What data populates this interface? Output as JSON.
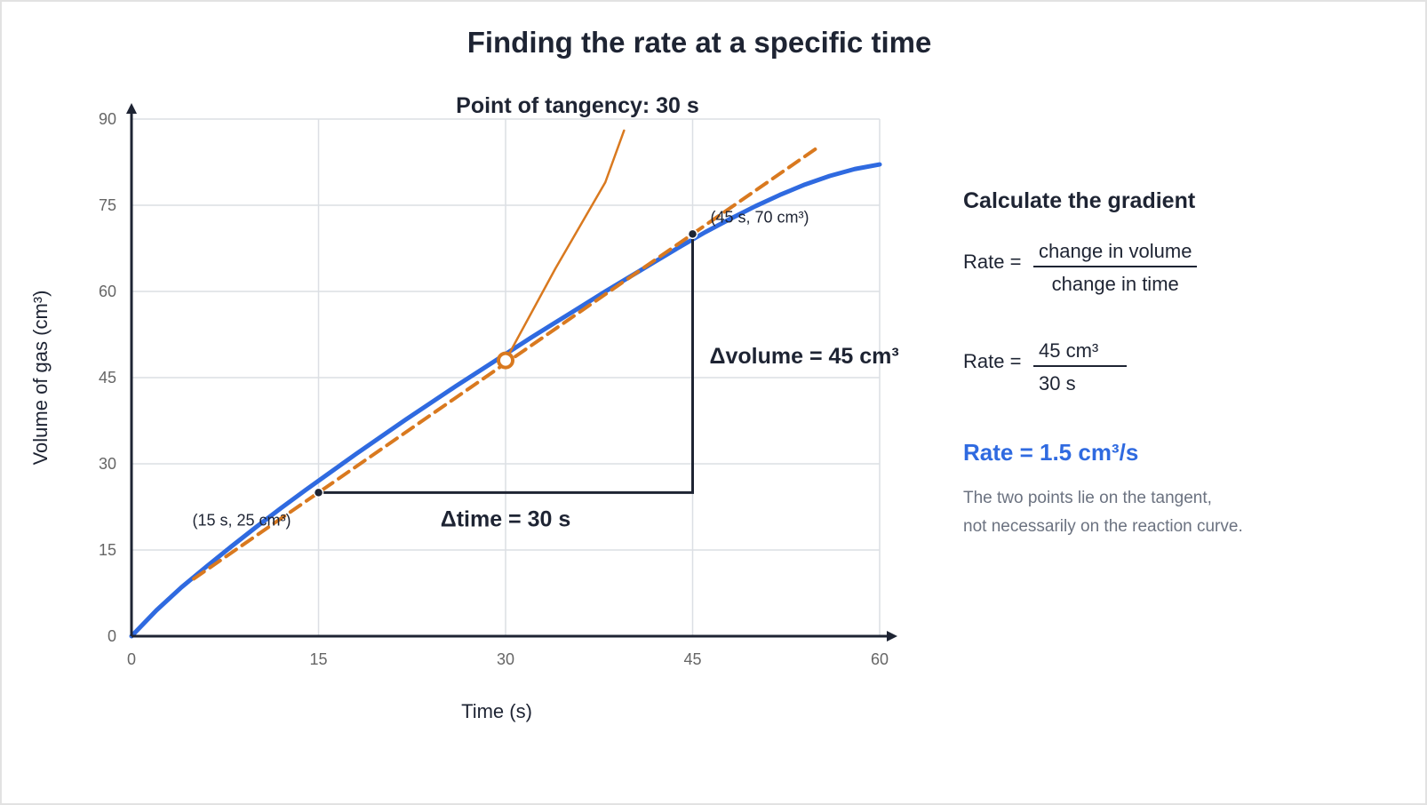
{
  "chart_data": {
    "type": "line",
    "title": "Finding the rate at a specific time",
    "subtitle": "Point of tangency: 30 s",
    "xlabel": "Time (s)",
    "ylabel": "Volume of gas (cm³)",
    "xlim": [
      0,
      60
    ],
    "ylim": [
      0,
      90
    ],
    "x_ticks": [
      0,
      15,
      30,
      45,
      60
    ],
    "y_ticks": [
      0,
      15,
      30,
      45,
      60,
      75,
      90
    ],
    "grid": true,
    "series": [
      {
        "role": "reaction-curve",
        "color": "#2f6ae0",
        "style": "solid",
        "x": [
          0,
          2,
          4,
          6,
          8,
          10,
          12,
          14,
          16,
          18,
          20,
          22,
          24,
          26,
          28,
          30,
          32,
          34,
          36,
          38,
          40,
          42,
          44,
          46,
          48,
          50,
          52,
          54,
          56,
          58,
          60
        ],
        "y": [
          0,
          4.5,
          8.5,
          12.1,
          15.6,
          19.0,
          22.3,
          25.5,
          28.6,
          31.7,
          34.7,
          37.7,
          40.6,
          43.5,
          46.3,
          49.1,
          51.9,
          54.6,
          57.3,
          60.0,
          62.6,
          65.2,
          67.8,
          70.3,
          72.6,
          74.8,
          76.8,
          78.6,
          80.1,
          81.3,
          82.1
        ]
      },
      {
        "role": "tangent-line",
        "color": "#d9791f",
        "style": "dashed",
        "x": [
          5,
          55
        ],
        "y": [
          10,
          85
        ]
      },
      {
        "role": "pointer-line",
        "color": "#d9791f",
        "style": "solid",
        "x": [
          30,
          34,
          38,
          39.5
        ],
        "y": [
          48,
          64,
          79,
          88
        ]
      }
    ],
    "tangent_point": {
      "x": 30,
      "y": 48
    },
    "points": [
      {
        "x": 15,
        "y": 25,
        "label": "(15 s, 25 cm³)"
      },
      {
        "x": 45,
        "y": 70,
        "label": "(45 s, 70 cm³)"
      }
    ],
    "delta_time_label": "Δtime = 30 s",
    "delta_volume_label": "Δvolume = 45 cm³",
    "colors": {
      "curve": "#2f6ae0",
      "tangent": "#d9791f",
      "axis": "#1e2433",
      "grid": "#dcdfe4"
    }
  },
  "panel": {
    "heading": "Calculate the gradient",
    "formula_lhs": "Rate =",
    "formula_num": "change in volume",
    "formula_den": "change in time",
    "calc_lhs": "Rate =",
    "calc_num": "45 cm³",
    "calc_den": "30 s",
    "result": "Rate = 1.5 cm³/s",
    "note_line1": "The two points lie on the tangent,",
    "note_line2": "not necessarily on the reaction curve."
  }
}
